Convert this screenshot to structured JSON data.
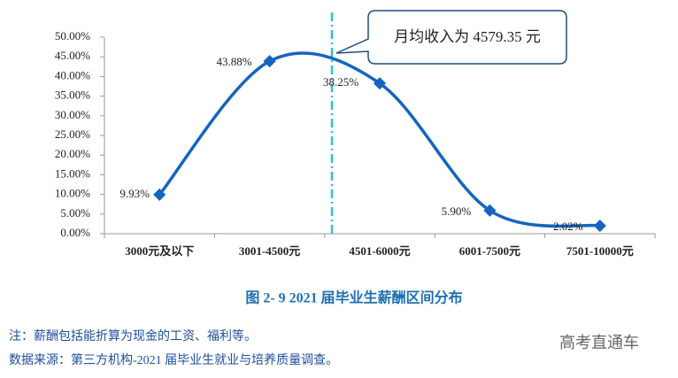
{
  "chart_data": {
    "type": "line",
    "categories": [
      "3000元及以下",
      "3001-4500元",
      "4501-6000元",
      "6001-7500元",
      "7501-10000元"
    ],
    "values": [
      9.93,
      43.88,
      38.25,
      5.9,
      2.02
    ],
    "value_labels": [
      "9.93%",
      "43.88%",
      "38.25%",
      "5.90%",
      "2.02%"
    ],
    "color": "#1565c0",
    "ylim": [
      0,
      50
    ],
    "yticks": [
      {
        "value": 0,
        "label": "0.00%"
      },
      {
        "value": 5,
        "label": "5.00%"
      },
      {
        "value": 10,
        "label": "10.00%"
      },
      {
        "value": 15,
        "label": "15.00%"
      },
      {
        "value": 20,
        "label": "20.00%"
      },
      {
        "value": 25,
        "label": "25.00%"
      },
      {
        "value": 30,
        "label": "30.00%"
      },
      {
        "value": 35,
        "label": "35.00%"
      },
      {
        "value": 40,
        "label": "40.00%"
      },
      {
        "value": 45,
        "label": "45.00%"
      },
      {
        "value": 50,
        "label": "50.00%"
      }
    ],
    "grid": false,
    "annotation": "月均收入为 4579.35 元",
    "caption": "图 2- 9   2021 届毕业生薪酬区间分布"
  },
  "notes": [
    "注：薪酬包括能折算为现金的工资、福利等。",
    "数据来源：第三方机构-2021 届毕业生就业与培养质量调查。"
  ],
  "watermark": "高考直通车"
}
